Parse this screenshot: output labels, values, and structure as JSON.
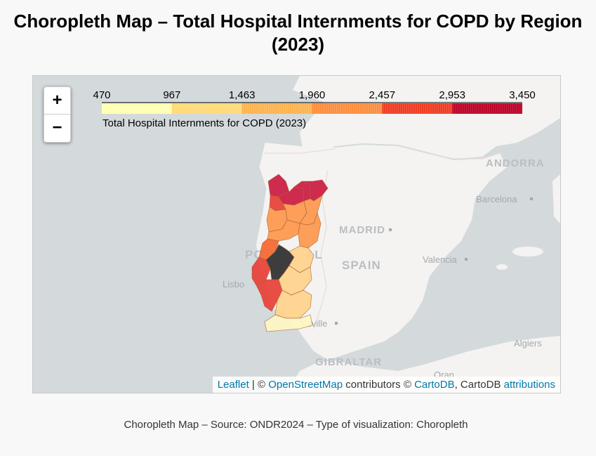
{
  "title": "Choropleth Map – Total Hospital Internments for COPD by Region (2023)",
  "legend": {
    "caption": "Total Hospital Internments for COPD (2023)",
    "ticks": [
      "470",
      "967",
      "1,463",
      "1,960",
      "2,457",
      "2,953",
      "3,450"
    ],
    "colors": [
      "#ffffb2",
      "#fed976",
      "#feb24c",
      "#fd8d3c",
      "#f03b20",
      "#bd0026"
    ]
  },
  "map": {
    "zoom_in": "+",
    "zoom_out": "−",
    "labels": {
      "andorra": "ANDORRA",
      "barcelona": "Barcelona",
      "madrid": "MADRID",
      "spain": "SPAIN",
      "valencia": "Valencia",
      "portugal_a": "PO",
      "portugal_b": "AL",
      "lisbon": "Lisbo",
      "seville": "Seville",
      "gibraltar": "GIBRALTAR",
      "algiers": "Algiers",
      "oran": "Oran"
    },
    "colors": {
      "sea": "#d4dadc",
      "land": "#f4f3f1",
      "no_data": "#333333"
    }
  },
  "attribution": {
    "leaflet": "Leaflet",
    "sep": " | © ",
    "osm": "OpenStreetMap",
    "mid": " contributors © ",
    "carto": "CartoDB",
    "mid2": ", CartoDB ",
    "attributions": "attributions"
  },
  "caption": "Choropleth Map – Source: ONDR2024 – Type of visualization: Choropleth"
}
